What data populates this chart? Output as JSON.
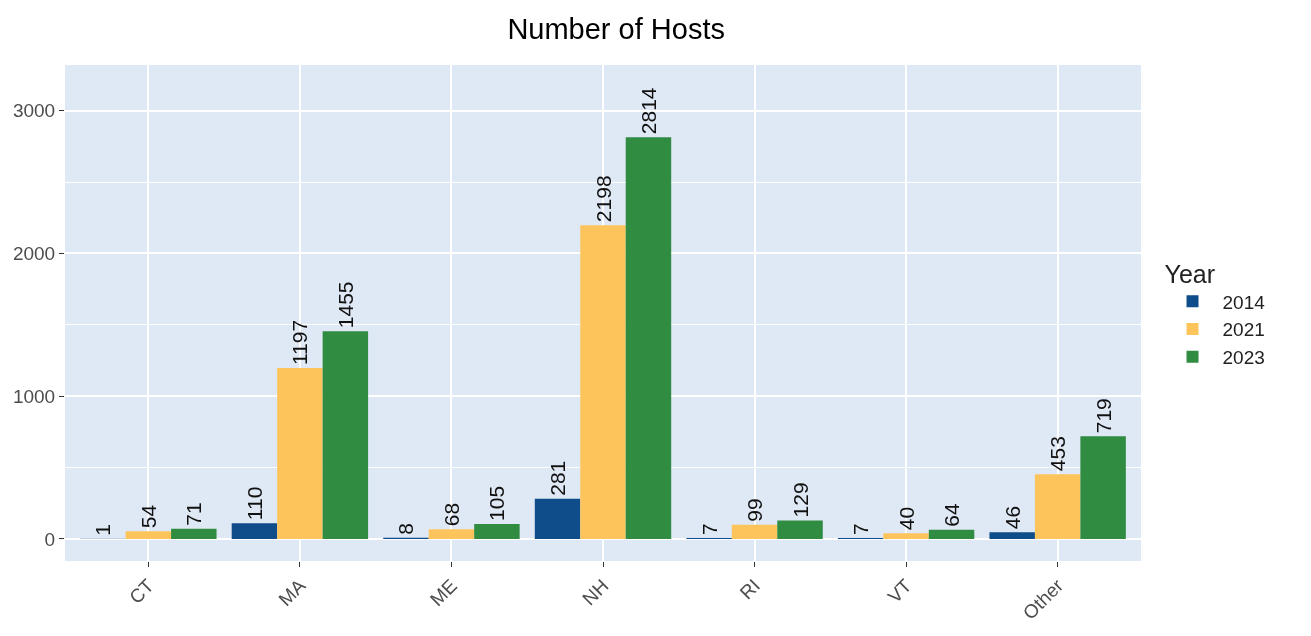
{
  "chart_data": {
    "type": "bar",
    "title": "Number of Hosts",
    "legend_title": "Year",
    "categories": [
      "CT",
      "MA",
      "ME",
      "NH",
      "RI",
      "VT",
      "Other"
    ],
    "series": [
      {
        "name": "2014",
        "color": "#0f4c8a",
        "values": [
          1,
          110,
          8,
          281,
          7,
          7,
          46
        ]
      },
      {
        "name": "2021",
        "color": "#fdc45c",
        "values": [
          54,
          1197,
          68,
          2198,
          99,
          40,
          453
        ]
      },
      {
        "name": "2023",
        "color": "#2f8c41",
        "values": [
          71,
          1455,
          105,
          2814,
          129,
          64,
          719
        ]
      }
    ],
    "ylim": [
      -155,
      3320
    ],
    "yticks": [
      0,
      1000,
      2000,
      3000
    ],
    "grid": true,
    "legend": "right",
    "data_labels": true
  }
}
